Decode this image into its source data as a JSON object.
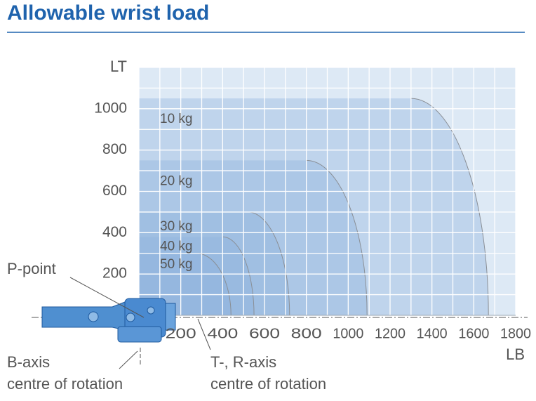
{
  "chart_data": {
    "type": "load-envelope",
    "title": "Allowable wrist load",
    "x_label": "LB",
    "y_label": "LT",
    "xlim": [
      0,
      1800
    ],
    "ylim": [
      0,
      1200
    ],
    "xticks": [
      200,
      400,
      600,
      800,
      1000,
      1200,
      1400,
      1600,
      1800
    ],
    "yticks": [
      200,
      400,
      600,
      800,
      1000
    ],
    "grid": true,
    "color": "#8fb3dc",
    "regions": [
      {
        "name": "10 kg",
        "lt": 1050,
        "lb_flat": 1300,
        "lb_max": 1670
      },
      {
        "name": "20 kg",
        "lt": 750,
        "lb_flat": 800,
        "lb_max": 1090
      },
      {
        "name": "30 kg",
        "lt": 500,
        "lb_flat": 520,
        "lb_max": 720
      },
      {
        "name": "40 kg",
        "lt": 380,
        "lb_flat": 400,
        "lb_max": 550
      },
      {
        "name": "50 kg",
        "lt": 300,
        "lb_flat": 275,
        "lb_max": 440
      }
    ],
    "annotations": {
      "p_point": "P-point",
      "b_axis": [
        "B-axis",
        "centre of rotation"
      ],
      "tr_axis": [
        "T-, R-axis",
        "centre of rotation"
      ]
    }
  }
}
